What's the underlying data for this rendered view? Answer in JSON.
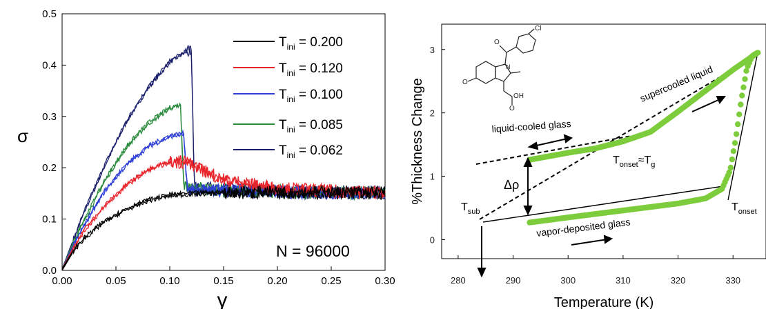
{
  "chart_data": [
    {
      "type": "line",
      "xlabel": "γ",
      "ylabel": "σ",
      "xlim": [
        0.0,
        0.3
      ],
      "ylim": [
        0.0,
        0.5
      ],
      "xticks": [
        "0.00",
        "0.05",
        "0.10",
        "0.15",
        "0.20",
        "0.25",
        "0.30"
      ],
      "yticks": [
        "0.0",
        "0.1",
        "0.2",
        "0.3",
        "0.4",
        "0.5"
      ],
      "legend_position": "top-right",
      "annotation": "N = 96000",
      "series": [
        {
          "name": "T_ini = 0.200",
          "label_main": "T",
          "label_sub": "ini",
          "label_value": " = 0.200",
          "color": "#000000",
          "x": [
            0,
            0.01,
            0.02,
            0.04,
            0.06,
            0.08,
            0.1,
            0.12,
            0.15,
            0.2,
            0.25,
            0.3
          ],
          "y": [
            0,
            0.035,
            0.06,
            0.095,
            0.118,
            0.135,
            0.145,
            0.148,
            0.15,
            0.15,
            0.15,
            0.15
          ]
        },
        {
          "name": "T_ini = 0.120",
          "label_main": "T",
          "label_sub": "ini",
          "label_value": " = 0.120",
          "color": "#e8242b",
          "x": [
            0,
            0.01,
            0.02,
            0.04,
            0.06,
            0.08,
            0.1,
            0.115,
            0.13,
            0.15,
            0.2,
            0.25,
            0.3
          ],
          "y": [
            0,
            0.04,
            0.075,
            0.125,
            0.165,
            0.195,
            0.21,
            0.21,
            0.195,
            0.175,
            0.158,
            0.153,
            0.15
          ]
        },
        {
          "name": "T_ini = 0.100",
          "label_main": "T",
          "label_sub": "ini",
          "label_value": " = 0.100",
          "color": "#2e3fd6",
          "x": [
            0,
            0.01,
            0.02,
            0.04,
            0.06,
            0.08,
            0.1,
            0.113,
            0.116,
            0.12,
            0.15,
            0.2,
            0.25,
            0.3
          ],
          "y": [
            0,
            0.045,
            0.085,
            0.155,
            0.205,
            0.24,
            0.26,
            0.265,
            0.16,
            0.155,
            0.155,
            0.152,
            0.15,
            0.15
          ]
        },
        {
          "name": "T_ini = 0.085",
          "label_main": "T",
          "label_sub": "ini",
          "label_value": " = 0.085",
          "color": "#2a8a3c",
          "x": [
            0,
            0.01,
            0.02,
            0.04,
            0.06,
            0.08,
            0.1,
            0.11,
            0.113,
            0.12,
            0.15,
            0.2,
            0.25,
            0.3
          ],
          "y": [
            0,
            0.05,
            0.095,
            0.175,
            0.24,
            0.285,
            0.315,
            0.32,
            0.165,
            0.16,
            0.155,
            0.152,
            0.15,
            0.15
          ]
        },
        {
          "name": "T_ini = 0.062",
          "label_main": "T",
          "label_sub": "ini",
          "label_value": " = 0.062",
          "color": "#1b1f6b",
          "x": [
            0,
            0.01,
            0.02,
            0.04,
            0.06,
            0.08,
            0.1,
            0.115,
            0.12,
            0.123,
            0.15,
            0.2,
            0.25,
            0.3
          ],
          "y": [
            0,
            0.055,
            0.11,
            0.205,
            0.29,
            0.355,
            0.405,
            0.425,
            0.425,
            0.16,
            0.155,
            0.152,
            0.15,
            0.15
          ]
        }
      ]
    },
    {
      "type": "scatter",
      "xlabel": "Temperature (K)",
      "ylabel": "%Thickness Change",
      "xlim": [
        277,
        336
      ],
      "ylim": [
        -0.3,
        3.4
      ],
      "xticks": [
        "280",
        "290",
        "300",
        "310",
        "320",
        "330"
      ],
      "yticks": [
        "0",
        "1",
        "2",
        "3"
      ],
      "series": [
        {
          "name": "vapor-deposited glass",
          "color": "#7ccc3c",
          "x": [
            293,
            300,
            310,
            320,
            325,
            328,
            329.5,
            330.5,
            331.5,
            332.5,
            333.5,
            334.5
          ],
          "y": [
            0.27,
            0.35,
            0.46,
            0.57,
            0.65,
            0.8,
            1.1,
            1.6,
            2.2,
            2.7,
            2.9,
            2.95
          ]
        },
        {
          "name": "liquid-cooled glass / supercooled liquid",
          "color": "#7ccc3c",
          "x": [
            293,
            300,
            305,
            310,
            315,
            320,
            325,
            330,
            334.5
          ],
          "y": [
            1.26,
            1.37,
            1.44,
            1.55,
            1.7,
            2.02,
            2.35,
            2.68,
            2.95
          ]
        }
      ],
      "annotations": {
        "liquid_cooled": "liquid-cooled glass",
        "supercooled": "supercooled liquid",
        "vapor_deposited": "vapor-deposited glass",
        "delta_rho": "Δρ",
        "t_sub_main": "T",
        "t_sub_sub": "sub",
        "t_onset_g_main": "T",
        "t_onset_g_sub": "onset",
        "t_onset_g_approx": "≈T",
        "t_onset_g_sub2": "g",
        "t_onset_main": "T",
        "t_onset_sub": "onset",
        "molecule_cl": "Cl",
        "molecule_o": "O",
        "molecule_oh": "OH",
        "molecule_n": "N"
      }
    }
  ]
}
